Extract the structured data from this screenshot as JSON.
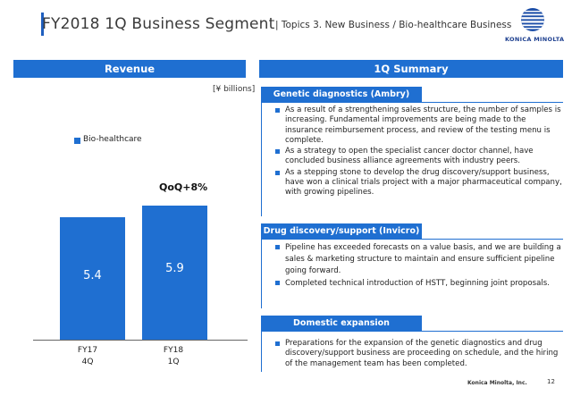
{
  "header": {
    "title": "FY2018 1Q Business Segment",
    "subtitle": "| Topics 3. New Business / Bio-healthcare Business",
    "logo_text": "KONICA MINOLTA",
    "accent": "#1f6fd1"
  },
  "revenue": {
    "heading": "Revenue",
    "unit": "[¥ billions]",
    "legend": "Bio-healthcare",
    "annotation": "QoQ+8%"
  },
  "chart_data": {
    "type": "bar",
    "categories": [
      "FY17\n4Q",
      "FY18\n1Q"
    ],
    "category_lines": [
      [
        "FY17",
        "4Q"
      ],
      [
        "FY18",
        "1Q"
      ]
    ],
    "series": [
      {
        "name": "Bio-healthcare",
        "values": [
          5.4,
          5.9
        ],
        "color": "#1f6fd1"
      }
    ],
    "value_labels": [
      "5.4",
      "5.9"
    ],
    "title": "",
    "xlabel": "",
    "ylabel": "",
    "ylim": [
      0,
      6.7
    ],
    "grid": false,
    "legend": "top-left",
    "annotations": [
      "QoQ+8%"
    ]
  },
  "summary": {
    "heading": "1Q Summary",
    "sections": [
      {
        "title": "Genetic diagnostics (Ambry)",
        "bullets": [
          "As a result of a strengthening sales structure, the number of samples is increasing. Fundamental improvements are being made to the insurance reimbursement process, and review of the testing menu is complete.",
          "As a strategy to open the specialist cancer doctor channel, have concluded business alliance agreements with industry peers.",
          "As a stepping stone to develop the drug discovery/support business, have won a clinical trials project with a major pharmaceutical company, with growing pipelines."
        ]
      },
      {
        "title": "Drug discovery/support (Invicro)",
        "bullets": [
          "Pipeline has exceeded forecasts on a value basis, and we are building a sales & marketing structure to maintain and ensure sufficient pipeline going forward.",
          "Completed technical introduction of HSTT, beginning joint proposals."
        ]
      },
      {
        "title": "Domestic expansion",
        "bullets": [
          "Preparations for the expansion of the genetic diagnostics and drug discovery/support business are proceeding on schedule, and the hiring of the management team has been completed."
        ]
      }
    ]
  },
  "footer": {
    "company": "Konica Minolta, Inc.",
    "page": "12"
  }
}
